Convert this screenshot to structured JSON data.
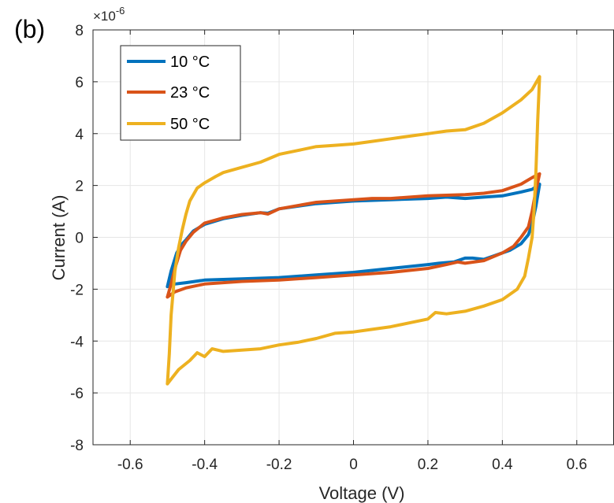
{
  "panel_label": "(b)",
  "chart_data": {
    "type": "line",
    "title": "",
    "xlabel": "Voltage (V)",
    "ylabel": "Current (A)",
    "y_multiplier": "×10",
    "y_multiplier_exponent": "-6",
    "xlim": [
      -0.7,
      0.7
    ],
    "ylim": [
      -8,
      8
    ],
    "xticks": [
      -0.6,
      -0.4,
      -0.2,
      0,
      0.2,
      0.4,
      0.6
    ],
    "xtick_labels": [
      "-0.6",
      "-0.4",
      "-0.2",
      "0",
      "0.2",
      "0.4",
      "0.6"
    ],
    "yticks": [
      -8,
      -6,
      -4,
      -2,
      0,
      2,
      4,
      6,
      8
    ],
    "ytick_labels": [
      "-8",
      "-6",
      "-4",
      "-2",
      "0",
      "2",
      "4",
      "6",
      "8"
    ],
    "grid": true,
    "legend_position": "top-left",
    "series": [
      {
        "name": "10 °C",
        "color": "#0072BD",
        "points": [
          [
            -0.5,
            -1.9
          ],
          [
            -0.49,
            -1.3
          ],
          [
            -0.475,
            -0.6
          ],
          [
            -0.46,
            -0.25
          ],
          [
            -0.45,
            -0.1
          ],
          [
            -0.43,
            0.25
          ],
          [
            -0.4,
            0.5
          ],
          [
            -0.35,
            0.72
          ],
          [
            -0.3,
            0.85
          ],
          [
            -0.25,
            0.95
          ],
          [
            -0.23,
            0.93
          ],
          [
            -0.2,
            1.1
          ],
          [
            -0.1,
            1.3
          ],
          [
            0,
            1.4
          ],
          [
            0.1,
            1.45
          ],
          [
            0.2,
            1.5
          ],
          [
            0.25,
            1.55
          ],
          [
            0.3,
            1.5
          ],
          [
            0.35,
            1.55
          ],
          [
            0.4,
            1.6
          ],
          [
            0.45,
            1.75
          ],
          [
            0.48,
            1.85
          ],
          [
            0.5,
            2.05
          ],
          [
            0.49,
            1.2
          ],
          [
            0.48,
            0.5
          ],
          [
            0.47,
            0.1
          ],
          [
            0.45,
            -0.25
          ],
          [
            0.42,
            -0.5
          ],
          [
            0.38,
            -0.7
          ],
          [
            0.35,
            -0.85
          ],
          [
            0.32,
            -0.8
          ],
          [
            0.3,
            -0.8
          ],
          [
            0.27,
            -0.95
          ],
          [
            0.23,
            -1.0
          ],
          [
            0.2,
            -1.05
          ],
          [
            0.1,
            -1.2
          ],
          [
            0,
            -1.35
          ],
          [
            -0.1,
            -1.45
          ],
          [
            -0.2,
            -1.55
          ],
          [
            -0.3,
            -1.6
          ],
          [
            -0.4,
            -1.65
          ],
          [
            -0.45,
            -1.75
          ],
          [
            -0.48,
            -1.8
          ],
          [
            -0.5,
            -1.9
          ]
        ]
      },
      {
        "name": "23 °C",
        "color": "#D95319",
        "points": [
          [
            -0.5,
            -2.3
          ],
          [
            -0.49,
            -1.8
          ],
          [
            -0.48,
            -1.2
          ],
          [
            -0.465,
            -0.5
          ],
          [
            -0.45,
            -0.15
          ],
          [
            -0.43,
            0.2
          ],
          [
            -0.4,
            0.55
          ],
          [
            -0.35,
            0.75
          ],
          [
            -0.3,
            0.88
          ],
          [
            -0.25,
            0.95
          ],
          [
            -0.23,
            0.9
          ],
          [
            -0.2,
            1.1
          ],
          [
            -0.1,
            1.35
          ],
          [
            0,
            1.45
          ],
          [
            0.05,
            1.5
          ],
          [
            0.1,
            1.5
          ],
          [
            0.2,
            1.6
          ],
          [
            0.3,
            1.65
          ],
          [
            0.35,
            1.7
          ],
          [
            0.4,
            1.8
          ],
          [
            0.45,
            2.05
          ],
          [
            0.48,
            2.3
          ],
          [
            0.5,
            2.45
          ],
          [
            0.49,
            1.8
          ],
          [
            0.48,
            1.0
          ],
          [
            0.47,
            0.4
          ],
          [
            0.45,
            0.0
          ],
          [
            0.43,
            -0.35
          ],
          [
            0.4,
            -0.6
          ],
          [
            0.35,
            -0.9
          ],
          [
            0.3,
            -1.0
          ],
          [
            0.28,
            -0.95
          ],
          [
            0.25,
            -1.05
          ],
          [
            0.2,
            -1.2
          ],
          [
            0.1,
            -1.35
          ],
          [
            0,
            -1.45
          ],
          [
            -0.1,
            -1.55
          ],
          [
            -0.2,
            -1.65
          ],
          [
            -0.3,
            -1.7
          ],
          [
            -0.4,
            -1.8
          ],
          [
            -0.45,
            -1.95
          ],
          [
            -0.48,
            -2.1
          ],
          [
            -0.5,
            -2.3
          ]
        ]
      },
      {
        "name": "50 °C",
        "color": "#EDB120",
        "points": [
          [
            -0.5,
            -5.65
          ],
          [
            -0.495,
            -4.5
          ],
          [
            -0.49,
            -3.0
          ],
          [
            -0.48,
            -1.3
          ],
          [
            -0.47,
            -0.4
          ],
          [
            -0.46,
            0.3
          ],
          [
            -0.45,
            0.9
          ],
          [
            -0.44,
            1.4
          ],
          [
            -0.42,
            1.9
          ],
          [
            -0.4,
            2.1
          ],
          [
            -0.37,
            2.35
          ],
          [
            -0.35,
            2.5
          ],
          [
            -0.3,
            2.7
          ],
          [
            -0.25,
            2.9
          ],
          [
            -0.2,
            3.2
          ],
          [
            -0.15,
            3.35
          ],
          [
            -0.1,
            3.5
          ],
          [
            -0.05,
            3.55
          ],
          [
            0,
            3.6
          ],
          [
            0.05,
            3.7
          ],
          [
            0.1,
            3.8
          ],
          [
            0.15,
            3.9
          ],
          [
            0.2,
            4.0
          ],
          [
            0.25,
            4.1
          ],
          [
            0.3,
            4.15
          ],
          [
            0.35,
            4.4
          ],
          [
            0.4,
            4.8
          ],
          [
            0.45,
            5.3
          ],
          [
            0.48,
            5.7
          ],
          [
            0.5,
            6.2
          ],
          [
            0.495,
            4.5
          ],
          [
            0.49,
            2.5
          ],
          [
            0.485,
            1.0
          ],
          [
            0.48,
            0.0
          ],
          [
            0.47,
            -0.8
          ],
          [
            0.46,
            -1.5
          ],
          [
            0.44,
            -2.0
          ],
          [
            0.42,
            -2.2
          ],
          [
            0.4,
            -2.4
          ],
          [
            0.35,
            -2.65
          ],
          [
            0.3,
            -2.85
          ],
          [
            0.25,
            -2.95
          ],
          [
            0.22,
            -2.9
          ],
          [
            0.2,
            -3.15
          ],
          [
            0.15,
            -3.3
          ],
          [
            0.1,
            -3.45
          ],
          [
            0.05,
            -3.55
          ],
          [
            0,
            -3.65
          ],
          [
            -0.05,
            -3.7
          ],
          [
            -0.1,
            -3.9
          ],
          [
            -0.15,
            -4.05
          ],
          [
            -0.2,
            -4.15
          ],
          [
            -0.25,
            -4.3
          ],
          [
            -0.3,
            -4.35
          ],
          [
            -0.35,
            -4.4
          ],
          [
            -0.38,
            -4.3
          ],
          [
            -0.4,
            -4.6
          ],
          [
            -0.42,
            -4.45
          ],
          [
            -0.44,
            -4.75
          ],
          [
            -0.47,
            -5.1
          ],
          [
            -0.5,
            -5.65
          ]
        ]
      }
    ]
  }
}
